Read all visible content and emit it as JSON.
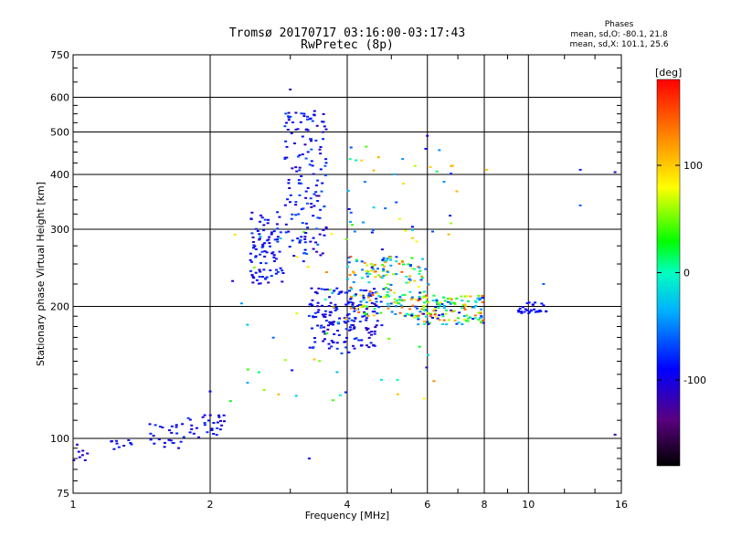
{
  "chart_data": {
    "type": "scatter",
    "title": "Tromsø 20170717 03:16:00-03:17:43",
    "subtitle": "RwPretec (8p)",
    "stats_heading": "Phases",
    "stats_line_o": "mean, sd,O: -80.1, 21.8",
    "stats_line_x": "mean, sd,X: 101.1, 25.6",
    "xlabel": "Frequency [MHz]",
    "ylabel": "Stationary phase Virtual Height [km]",
    "x_scale": "log",
    "y_scale": "log",
    "xlim": [
      1,
      16
    ],
    "ylim": [
      75,
      750
    ],
    "x_ticks": [
      "1",
      "2",
      "4",
      "6",
      "8",
      "10",
      "16"
    ],
    "x_tick_values": [
      1,
      2,
      4,
      6,
      8,
      10,
      16
    ],
    "y_ticks": [
      "750",
      "600",
      "500",
      "400",
      "300",
      "200",
      "100",
      "75"
    ],
    "y_tick_values": [
      750,
      600,
      500,
      400,
      300,
      200,
      100,
      75
    ],
    "grid": true,
    "colorbar": {
      "label": "[deg]",
      "range": [
        -180,
        180
      ],
      "ticks": [
        "100",
        "0",
        "-100"
      ],
      "tick_values": [
        100,
        0,
        -100
      ]
    },
    "clusters": [
      {
        "x": [
          1.0,
          1.08
        ],
        "y": [
          88,
          97
        ],
        "phase": [
          -115,
          -85
        ],
        "n": 8
      },
      {
        "x": [
          1.2,
          1.35
        ],
        "y": [
          94,
          100
        ],
        "phase": [
          -110,
          -80
        ],
        "n": 10
      },
      {
        "x": [
          1.45,
          1.75
        ],
        "y": [
          95,
          108
        ],
        "phase": [
          -110,
          -75
        ],
        "n": 24
      },
      {
        "x": [
          1.75,
          2.15
        ],
        "y": [
          100,
          115
        ],
        "phase": [
          -110,
          -70
        ],
        "n": 30
      },
      {
        "x": [
          2.45,
          2.9
        ],
        "y": [
          225,
          330
        ],
        "phase": [
          -110,
          -70
        ],
        "n": 90
      },
      {
        "x": [
          2.9,
          3.6
        ],
        "y": [
          260,
          560
        ],
        "phase": [
          -120,
          -60
        ],
        "n": 150
      },
      {
        "x": [
          3.3,
          4.7
        ],
        "y": [
          160,
          220
        ],
        "phase": [
          -115,
          -70
        ],
        "n": 180
      },
      {
        "x": [
          4.0,
          6.0
        ],
        "y": [
          190,
          260
        ],
        "phase": [
          -80,
          150
        ],
        "n": 180
      },
      {
        "x": [
          5.5,
          8.0
        ],
        "y": [
          182,
          212
        ],
        "phase": [
          -110,
          160
        ],
        "n": 140
      },
      {
        "x": [
          4.0,
          7.0
        ],
        "y": [
          280,
          470
        ],
        "phase": [
          -100,
          120
        ],
        "n": 40
      },
      {
        "x": [
          9.5,
          11.0
        ],
        "y": [
          193,
          205
        ],
        "phase": [
          -110,
          -80
        ],
        "n": 28
      },
      {
        "x": [
          2.2,
          6.5
        ],
        "y": [
          120,
          300
        ],
        "phase": [
          -120,
          130
        ],
        "n": 70
      }
    ],
    "extra_points": [
      {
        "x": 3.0,
        "y": 625,
        "phase": -120
      },
      {
        "x": 6.0,
        "y": 490,
        "phase": -100
      },
      {
        "x": 8.1,
        "y": 410,
        "phase": 100
      },
      {
        "x": 13.0,
        "y": 410,
        "phase": -80
      },
      {
        "x": 13.0,
        "y": 340,
        "phase": -60
      },
      {
        "x": 15.5,
        "y": 405,
        "phase": -110
      },
      {
        "x": 15.5,
        "y": 102,
        "phase": -110
      },
      {
        "x": 3.3,
        "y": 90,
        "phase": -90
      },
      {
        "x": 2.0,
        "y": 128,
        "phase": -90
      },
      {
        "x": 10.8,
        "y": 225,
        "phase": -60
      }
    ]
  }
}
